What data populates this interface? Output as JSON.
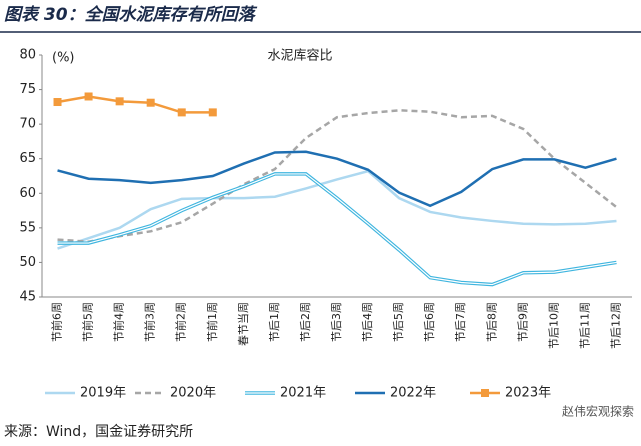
{
  "title": "图表 30：全国水泥库存有所回落",
  "source": "来源：Wind，国金证券研究所",
  "watermark": "赵伟宏观探索",
  "chart_data": {
    "type": "line",
    "title": "水泥库容比",
    "y_label": "(%)",
    "categories": [
      "节前6周",
      "节前5周",
      "节前4周",
      "节前3周",
      "节前2周",
      "节前1周",
      "春节当周",
      "节后1周",
      "节后2周",
      "节后3周",
      "节后4周",
      "节后5周",
      "节后6周",
      "节后7周",
      "节后8周",
      "节后9周",
      "节后10周",
      "节后11周",
      "节后12周"
    ],
    "series": [
      {
        "name": "2019年",
        "color": "#add8f0",
        "values": [
          52,
          53.5,
          55,
          57.7,
          59.2,
          59.3,
          59.3,
          59.5,
          60.7,
          62,
          63.2,
          59.3,
          57.3,
          56.5,
          56,
          55.6,
          55.5,
          55.6,
          56
        ]
      },
      {
        "name": "2020年",
        "color": "#a6a6a6",
        "dashed": true,
        "values": [
          53.3,
          53,
          53.8,
          54.5,
          55.8,
          58.5,
          61.3,
          63.5,
          68,
          71,
          71.6,
          72,
          71.8,
          71,
          71.2,
          69.3,
          65,
          61.5,
          58
        ]
      },
      {
        "name": "2021年",
        "color": "#3fb5df",
        "double": true,
        "values": [
          52.8,
          52.8,
          54,
          55.3,
          57.5,
          59.4,
          61,
          62.8,
          62.8,
          59.3,
          55.6,
          51.8,
          47.8,
          47.1,
          46.8,
          48.5,
          48.6,
          49.3,
          50
        ]
      },
      {
        "name": "2022年",
        "color": "#1f6fb2",
        "values": [
          63.3,
          62.1,
          61.9,
          61.5,
          61.9,
          62.5,
          64.3,
          65.9,
          66,
          65,
          63.4,
          60.1,
          58.2,
          60.2,
          63.5,
          64.9,
          64.9,
          63.7,
          65
        ]
      },
      {
        "name": "2023年",
        "color": "#f39a3b",
        "marker": "square",
        "values": [
          73.2,
          74,
          73.3,
          73.1,
          71.7,
          71.7,
          null,
          null,
          null,
          null,
          null,
          null,
          null,
          null,
          null,
          null,
          null,
          null,
          null
        ]
      }
    ],
    "ylim": [
      45,
      80
    ],
    "yticks": [
      45,
      50,
      55,
      60,
      65,
      70,
      75,
      80
    ],
    "grid": false,
    "legend": "bottom"
  }
}
